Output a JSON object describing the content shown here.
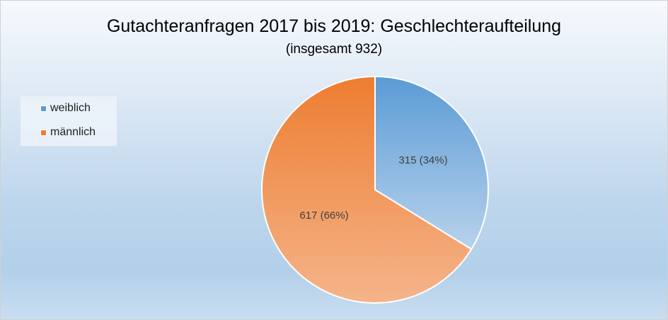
{
  "chart_data": {
    "type": "pie",
    "title": "Gutachteranfragen 2017 bis 2019: Geschlechteraufteilung",
    "subtitle": "(insgesamt 932)",
    "categories": [
      "weiblich",
      "männlich"
    ],
    "values": [
      315,
      617
    ],
    "percentages": [
      34,
      66
    ],
    "data_labels": [
      "315 (34%)",
      "617 (66%)"
    ],
    "colors": [
      "#5b9bd5",
      "#ed7d31"
    ],
    "legend_position": "left"
  }
}
